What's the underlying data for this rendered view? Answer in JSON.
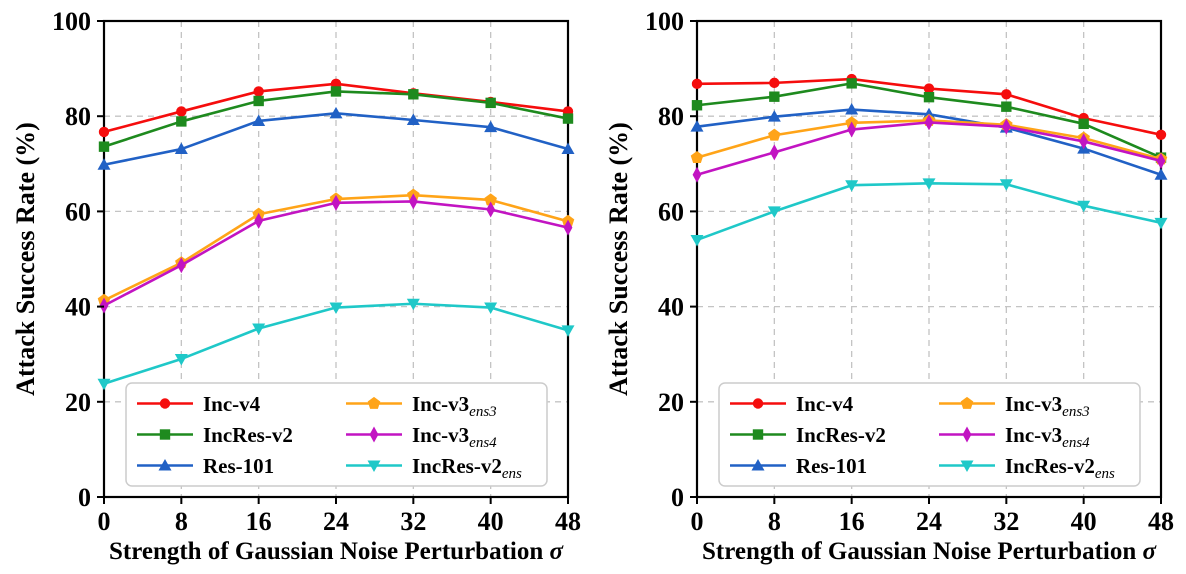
{
  "figure": {
    "background": "#ffffff",
    "ylabel": "Attack Success Rate (%)",
    "xlabel": "Strength of Gaussian Noise Perturbation",
    "xlabel_symbol": "σ",
    "x_ticks": [
      0,
      8,
      16,
      24,
      32,
      40,
      48
    ],
    "y_ticks": [
      0,
      20,
      40,
      60,
      80,
      100
    ],
    "xlim": [
      0,
      48
    ],
    "ylim": [
      0,
      100
    ],
    "grid": "dashed",
    "grid_color": "#c4c4c4",
    "spine_color": "#000000",
    "legend_position": "lower-center-inside",
    "series_meta": [
      {
        "label": "Inc-v4",
        "sub": "",
        "color": "#f50d0d",
        "marker": "circle"
      },
      {
        "label": "IncRes-v2",
        "sub": "",
        "color": "#1e8a1e",
        "marker": "square"
      },
      {
        "label": "Res-101",
        "sub": "",
        "color": "#2161c5",
        "marker": "triangle-up"
      },
      {
        "label": "Inc-v3",
        "sub": "ens3",
        "color": "#ffa418",
        "marker": "pentagon"
      },
      {
        "label": "Inc-v3",
        "sub": "ens4",
        "color": "#c214c2",
        "marker": "diamond-thin"
      },
      {
        "label": "IncRes-v2",
        "sub": "ens",
        "color": "#1fc8c8",
        "marker": "triangle-down"
      }
    ]
  },
  "chart_data": [
    {
      "type": "line",
      "panel": "left",
      "title": "",
      "xlabel": "Strength of Gaussian Noise Perturbation σ",
      "ylabel": "Attack Success Rate (%)",
      "x": [
        0,
        8,
        16,
        24,
        32,
        40,
        48
      ],
      "ylim": [
        0,
        100
      ],
      "series": [
        {
          "name": "Inc-v4",
          "values": [
            76.7,
            81.0,
            85.2,
            86.8,
            84.8,
            83.0,
            81.0
          ]
        },
        {
          "name": "IncRes-v2",
          "values": [
            73.6,
            78.9,
            83.2,
            85.2,
            84.6,
            82.8,
            79.5
          ]
        },
        {
          "name": "Res-101",
          "values": [
            69.8,
            73.1,
            79.0,
            80.6,
            79.2,
            77.7,
            73.1
          ]
        },
        {
          "name": "Inc-v3_ens3",
          "values": [
            41.3,
            49.2,
            59.4,
            62.6,
            63.4,
            62.4,
            57.9
          ]
        },
        {
          "name": "Inc-v3_ens4",
          "values": [
            40.2,
            48.7,
            58.0,
            61.8,
            62.1,
            60.4,
            56.6
          ]
        },
        {
          "name": "IncRes-v2_ens",
          "values": [
            23.8,
            29.0,
            35.4,
            39.8,
            40.6,
            39.8,
            35.0
          ]
        }
      ]
    },
    {
      "type": "line",
      "panel": "right",
      "title": "",
      "xlabel": "Strength of Gaussian Noise Perturbation σ",
      "ylabel": "Attack Success Rate (%)",
      "x": [
        0,
        8,
        16,
        24,
        32,
        40,
        48
      ],
      "ylim": [
        0,
        100
      ],
      "series": [
        {
          "name": "Inc-v4",
          "values": [
            86.8,
            87.0,
            87.8,
            85.8,
            84.6,
            79.6,
            76.1
          ]
        },
        {
          "name": "IncRes-v2",
          "values": [
            82.3,
            84.1,
            86.9,
            84.0,
            82.0,
            78.4,
            71.3
          ]
        },
        {
          "name": "Res-101",
          "values": [
            77.8,
            79.9,
            81.4,
            80.4,
            77.6,
            73.2,
            67.7
          ]
        },
        {
          "name": "Inc-v3_ens3",
          "values": [
            71.3,
            76.0,
            78.6,
            79.1,
            78.2,
            75.4,
            71.0
          ]
        },
        {
          "name": "Inc-v3_ens4",
          "values": [
            67.7,
            72.4,
            77.2,
            78.7,
            77.8,
            74.7,
            70.6
          ]
        },
        {
          "name": "IncRes-v2_ens",
          "values": [
            54.0,
            60.0,
            65.5,
            65.9,
            65.7,
            61.2,
            57.6
          ]
        }
      ]
    }
  ]
}
